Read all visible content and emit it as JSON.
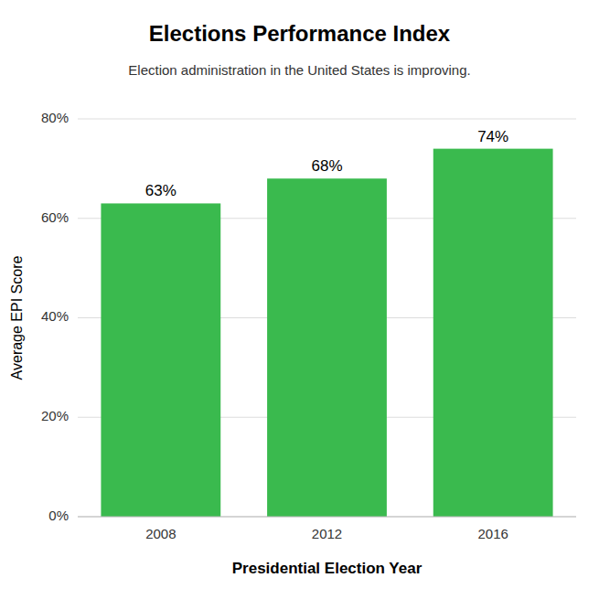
{
  "chart_data": {
    "type": "bar",
    "title": "Elections Performance Index",
    "subtitle": "Election administration in the United States is improving.",
    "xlabel": "Presidential Election Year",
    "ylabel": "Average EPI Score",
    "categories": [
      "2008",
      "2012",
      "2016"
    ],
    "values": [
      63,
      68,
      74
    ],
    "value_labels": [
      "63%",
      "68%",
      "74%"
    ],
    "data_labels": true,
    "color": "#3aba4e",
    "ylim": [
      0,
      80
    ],
    "yticks": [
      {
        "value": 0,
        "label": "0%"
      },
      {
        "value": 20,
        "label": "20%"
      },
      {
        "value": 40,
        "label": "40%"
      },
      {
        "value": 60,
        "label": "60%"
      },
      {
        "value": 80,
        "label": "80%"
      }
    ],
    "grid": true
  }
}
